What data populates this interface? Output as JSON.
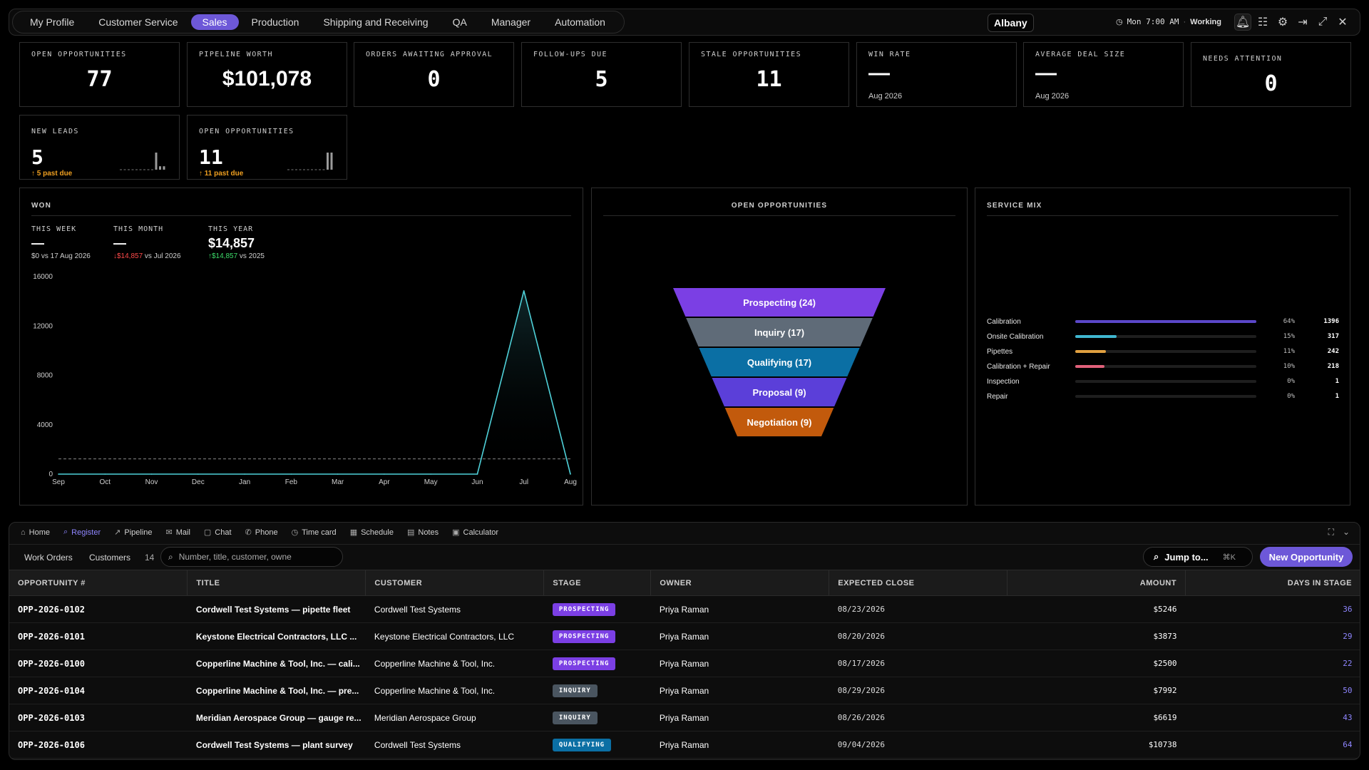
{
  "tabs": [
    {
      "label": "My Profile"
    },
    {
      "label": "Customer Service"
    },
    {
      "label": "Sales",
      "active": true
    },
    {
      "label": "Production"
    },
    {
      "label": "Shipping and Receiving"
    },
    {
      "label": "QA"
    },
    {
      "label": "Manager"
    },
    {
      "label": "Automation"
    }
  ],
  "location": "Albany",
  "status": {
    "time": "Mon 7:00 AM",
    "separator": "·",
    "state": "Working"
  },
  "icons": [
    "bell-icon",
    "sliders-icon",
    "gear-icon",
    "logout-icon",
    "expand-icon",
    "close-icon"
  ],
  "kpis": [
    {
      "label": "OPEN OPPORTUNITIES",
      "value": "77"
    },
    {
      "label": "PIPELINE WORTH",
      "value": "$101,078"
    },
    {
      "label": "ORDERS AWAITING APPROVAL",
      "value": "0"
    },
    {
      "label": "FOLLOW-UPS DUE",
      "value": "5"
    },
    {
      "label": "STALE OPPORTUNITIES",
      "value": "11"
    },
    {
      "label": "WIN RATE",
      "value": "—",
      "sub": "Aug 2026"
    },
    {
      "label": "AVERAGE DEAL SIZE",
      "value": "—",
      "sub": "Aug 2026"
    },
    {
      "label": "NEEDS ATTENTION",
      "value": "0"
    }
  ],
  "kpis2": [
    {
      "label": "NEW LEADS",
      "value": "5",
      "due": "5 past due",
      "spark": [
        0,
        0,
        0,
        0,
        0,
        0,
        0,
        0,
        0,
        5,
        1,
        1
      ]
    },
    {
      "label": "OPEN OPPORTUNITIES",
      "value": "11",
      "due": "11 past due",
      "spark": [
        0,
        0,
        0,
        0,
        0,
        0,
        0,
        0,
        0,
        0,
        5,
        5
      ]
    }
  ],
  "won": {
    "title": "WON",
    "stats": [
      {
        "label": "THIS WEEK",
        "value": "—",
        "compare": "$0 vs 17 Aug 2026"
      },
      {
        "label": "THIS MONTH",
        "value": "—",
        "arrow": "↓",
        "delta": "$14,857",
        "compare": " vs Jul 2026"
      },
      {
        "label": "THIS YEAR",
        "value": "$14,857",
        "arrow": "↑",
        "delta": "$14,857",
        "compare": " vs 2025"
      }
    ]
  },
  "chart_data": {
    "type": "line",
    "title": "WON",
    "x": [
      "Sep",
      "Oct",
      "Nov",
      "Dec",
      "Jan",
      "Feb",
      "Mar",
      "Apr",
      "May",
      "Jun",
      "Jul",
      "Aug"
    ],
    "series": [
      {
        "values": [
          0,
          0,
          0,
          0,
          0,
          0,
          0,
          0,
          0,
          0,
          14857,
          0
        ]
      }
    ],
    "reference_line": 1238,
    "ylim": [
      0,
      16000
    ],
    "yticks": [
      0,
      4000,
      8000,
      12000,
      16000
    ],
    "grid": false,
    "line_color": "#4fd1d9"
  },
  "funnel": {
    "title": "OPEN OPPORTUNITIES",
    "stages": [
      {
        "label": "Prospecting (24)",
        "color": "#7b3fe4"
      },
      {
        "label": "Inquiry (17)",
        "color": "#5f6b78"
      },
      {
        "label": "Qualifying (17)",
        "color": "#0b6fa4"
      },
      {
        "label": "Proposal (9)",
        "color": "#5b3fd9"
      },
      {
        "label": "Negotiation (9)",
        "color": "#c25a0c"
      }
    ]
  },
  "service_mix": {
    "title": "SERVICE MIX",
    "rows": [
      {
        "name": "Calibration",
        "pct": "64%",
        "count": "1396",
        "fill": 1.0,
        "color": "#5b47c9"
      },
      {
        "name": "Onsite Calibration",
        "pct": "15%",
        "count": "317",
        "fill": 0.23,
        "color": "#3fb6cf"
      },
      {
        "name": "Pipettes",
        "pct": "11%",
        "count": "242",
        "fill": 0.17,
        "color": "#e0a040"
      },
      {
        "name": "Calibration + Repair",
        "pct": "10%",
        "count": "218",
        "fill": 0.16,
        "color": "#e0607a"
      },
      {
        "name": "Inspection",
        "pct": "0%",
        "count": "1",
        "fill": 0,
        "color": "#888"
      },
      {
        "name": "Repair",
        "pct": "0%",
        "count": "1",
        "fill": 0,
        "color": "#888"
      }
    ]
  },
  "bottom_nav": [
    {
      "label": "Home",
      "icon": "home-icon",
      "glyph": "⌂"
    },
    {
      "label": "Register",
      "icon": "search-icon",
      "glyph": "⌕",
      "active": true
    },
    {
      "label": "Pipeline",
      "icon": "trend-icon",
      "glyph": "↗"
    },
    {
      "label": "Mail",
      "icon": "mail-icon",
      "glyph": "✉"
    },
    {
      "label": "Chat",
      "icon": "chat-icon",
      "glyph": "▢"
    },
    {
      "label": "Phone",
      "icon": "phone-icon",
      "glyph": "✆"
    },
    {
      "label": "Time card",
      "icon": "clock-icon",
      "glyph": "◷"
    },
    {
      "label": "Schedule",
      "icon": "calendar-icon",
      "glyph": "▦"
    },
    {
      "label": "Notes",
      "icon": "notes-icon",
      "glyph": "▤"
    },
    {
      "label": "Calculator",
      "icon": "calculator-icon",
      "glyph": "▣"
    }
  ],
  "subtabs": {
    "work_orders": "Work Orders",
    "customers": "Customers",
    "count": "14"
  },
  "search": {
    "placeholder": "Number, title, customer, owne"
  },
  "jump": {
    "label": "Jump to...",
    "shortcut": "⌘K"
  },
  "new_button": "New Opportunity",
  "table": {
    "columns": [
      "OPPORTUNITY #",
      "TITLE",
      "CUSTOMER",
      "STAGE",
      "OWNER",
      "EXPECTED CLOSE",
      "AMOUNT",
      "DAYS IN STAGE"
    ],
    "rows": [
      {
        "opp": "OPP-2026-0102",
        "title": "Cordwell Test Systems — pipette fleet",
        "customer": "Cordwell Test Systems",
        "stage": "PROSPECTING",
        "owner": "Priya Raman",
        "close": "08/23/2026",
        "amount": "$5246",
        "days": "36"
      },
      {
        "opp": "OPP-2026-0101",
        "title": "Keystone Electrical Contractors, LLC ...",
        "customer": "Keystone Electrical Contractors, LLC",
        "stage": "PROSPECTING",
        "owner": "Priya Raman",
        "close": "08/20/2026",
        "amount": "$3873",
        "days": "29"
      },
      {
        "opp": "OPP-2026-0100",
        "title": "Copperline Machine & Tool, Inc. — cali...",
        "customer": "Copperline Machine & Tool, Inc.",
        "stage": "PROSPECTING",
        "owner": "Priya Raman",
        "close": "08/17/2026",
        "amount": "$2500",
        "days": "22"
      },
      {
        "opp": "OPP-2026-0104",
        "title": "Copperline Machine & Tool, Inc. — pre...",
        "customer": "Copperline Machine & Tool, Inc.",
        "stage": "INQUIRY",
        "owner": "Priya Raman",
        "close": "08/29/2026",
        "amount": "$7992",
        "days": "50"
      },
      {
        "opp": "OPP-2026-0103",
        "title": "Meridian Aerospace Group — gauge re...",
        "customer": "Meridian Aerospace Group",
        "stage": "INQUIRY",
        "owner": "Priya Raman",
        "close": "08/26/2026",
        "amount": "$6619",
        "days": "43"
      },
      {
        "opp": "OPP-2026-0106",
        "title": "Cordwell Test Systems — plant survey",
        "customer": "Cordwell Test Systems",
        "stage": "QUALIFYING",
        "owner": "Priya Raman",
        "close": "09/04/2026",
        "amount": "$10738",
        "days": "64"
      }
    ]
  },
  "stage_colors": {
    "PROSPECTING": "#7b3fe4",
    "INQUIRY": "#4a5560",
    "QUALIFYING": "#0b6fa4"
  }
}
